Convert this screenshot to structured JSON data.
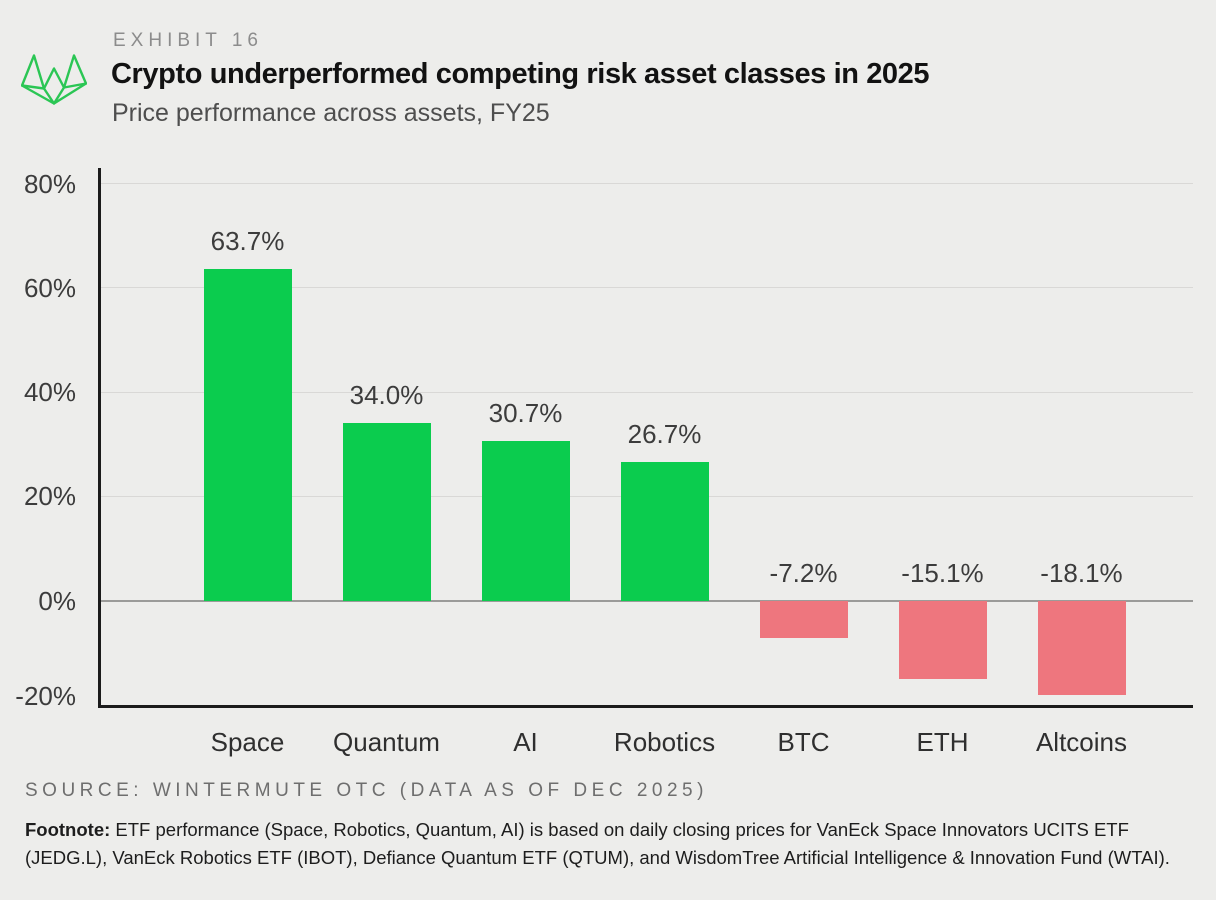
{
  "header": {
    "exhibit_label": "EXHIBIT 16",
    "title": "Crypto underperformed competing risk asset classes in 2025",
    "subtitle": "Price performance across assets, FY25"
  },
  "logo": {
    "name": "wintermute-logo",
    "color": "#2BC654"
  },
  "chart_data": {
    "type": "bar",
    "title": "Crypto underperformed competing risk asset classes in 2025",
    "subtitle": "Price performance across assets, FY25",
    "categories": [
      "Space",
      "Quantum",
      "AI",
      "Robotics",
      "BTC",
      "ETH",
      "Altcoins"
    ],
    "values": [
      63.7,
      34.0,
      30.7,
      26.7,
      -7.2,
      -15.1,
      -18.1
    ],
    "value_labels": [
      "63.7%",
      "34.0%",
      "30.7%",
      "26.7%",
      "-7.2%",
      "-15.1%",
      "-18.1%"
    ],
    "xlabel": "",
    "ylabel": "",
    "ylim": [
      -20,
      83
    ],
    "yticks": [
      80,
      60,
      40,
      20,
      0,
      -20
    ],
    "ytick_labels": [
      "80%",
      "60%",
      "40%",
      "20%",
      "0%",
      "-20%"
    ],
    "grid": "horizontal",
    "legend": "none",
    "colors": {
      "positive": "#0BCC4E",
      "negative": "#EE767E",
      "gridline": "#D9D8D6",
      "zero_line": "#9B9B99",
      "axis": "#1B1B1B",
      "background": "#EDEDEB"
    }
  },
  "footer": {
    "source": "SOURCE: WINTERMUTE OTC (DATA AS OF DEC 2025)",
    "footnote_label": "Footnote:",
    "footnote_line1": "ETF performance (Space, Robotics, Quantum, AI) is based on daily closing prices for VanEck Space Innovators UCITS ETF",
    "footnote_line2": "(JEDG.L), VanEck Robotics ETF (IBOT), Defiance Quantum ETF (QTUM), and WisdomTree Artificial Intelligence & Innovation Fund (WTAI)."
  }
}
